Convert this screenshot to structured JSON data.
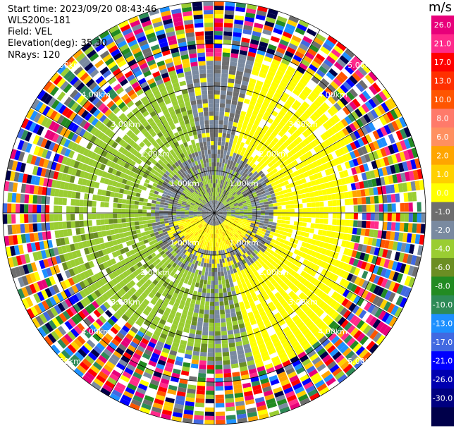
{
  "info": {
    "start_time": "Start time: 2023/09/20 08:43:46",
    "site": "WLS200s-181",
    "field": "Field: VEL",
    "elevation": "Elevation(deg): 35.30",
    "nrays": "NRays: 120"
  },
  "colorbar": {
    "unit": "m/s",
    "ticks": [
      "26.0",
      "21.0",
      "17.0",
      "13.0",
      "10.0",
      "8.0",
      "6.0",
      "2.0",
      "1.0",
      "0.0",
      "-1.0",
      "-2.0",
      "-4.0",
      "-6.0",
      "-8.0",
      "-10.0",
      "-13.0",
      "-17.0",
      "-21.0",
      "-26.0",
      "-30.0"
    ],
    "colors": [
      "#e8007a",
      "#ff2a8a",
      "#ff0000",
      "#ff3000",
      "#ff5500",
      "#ff7a6a",
      "#ff9060",
      "#ffa500",
      "#ffd000",
      "#ffff00",
      "#6e6e6e",
      "#7a8aa0",
      "#9acd32",
      "#6b8e23",
      "#228b22",
      "#2e8b57",
      "#1e90ff",
      "#4169e1",
      "#0000ff",
      "#0000b0",
      "#000080",
      "#00004a"
    ]
  },
  "chart_data": {
    "type": "heatmap",
    "projection": "polar PPI",
    "field": "VEL",
    "units": "m/s",
    "n_rays": 120,
    "range_rings_km": [
      1.0,
      2.0,
      3.0,
      4.0,
      5.0
    ],
    "ring_labels": [
      "1.00km",
      "2.00km",
      "3.00km",
      "4.00km",
      "5.00km"
    ],
    "value_range": [
      -30.0,
      26.0
    ],
    "pattern": "near-range (<3 km): negative velocities (~-2 m/s) west, positive (~2 m/s) east; beyond ~3.5 km: noisy multicolor values"
  }
}
